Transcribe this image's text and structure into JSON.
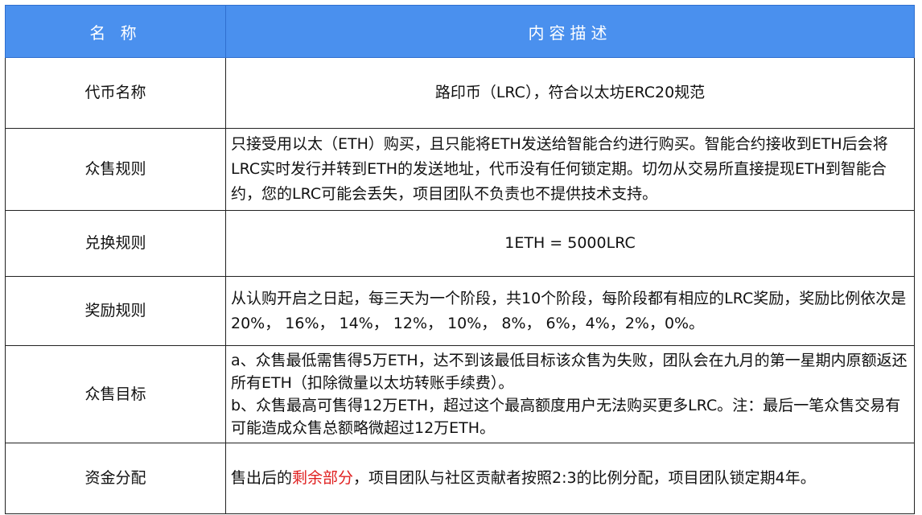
{
  "header": {
    "col1": "名 称",
    "col2": "内容描述"
  },
  "rows": [
    {
      "name": "代币名称",
      "content": "路印币（LRC），符合以太坊ERC20规范"
    },
    {
      "name": "众售规则",
      "content": "只接受用以太（ETH）购买，且只能将ETH发送给智能合约进行购买。智能合约接收到ETH后会将LRC实时发行并转到ETH的发送地址，代币没有任何锁定期。切勿从交易所直接提现ETH到智能合约，您的LRC可能会丢失，项目团队不负责也不提供技术支持。"
    },
    {
      "name": "兑换规则",
      "content": "1ETH = 5000LRC"
    },
    {
      "name": "奖励规则",
      "content": "从认购开启之日起，每三天为一个阶段，共10个阶段，每阶段都有相应的LRC奖励，奖励比例依次是20%， 16%， 14%， 12%， 10%， 8%， 6%，4%，2%，0%。"
    },
    {
      "name": "众售目标",
      "content_a": "a、众售最低需售得5万ETH，达不到该最低目标该众售为失败，团队会在九月的第一星期内原额返还所有ETH（扣除微量以太坊转账手续费）。",
      "content_b": "b、众售最高可售得12万ETH，超过这个最高额度用户无法购买更多LRC。注：最后一笔众售交易有可能造成众售总额略微超过12万ETH。"
    },
    {
      "name": "资金分配",
      "content_pre": "售出后的",
      "content_highlight": "剩余部分",
      "content_post": "，项目团队与社区贡献者按照2:3的比例分配，项目团队锁定期4年。"
    }
  ],
  "colors": {
    "header_bg": "#4a90ee",
    "highlight": "#e02020"
  }
}
